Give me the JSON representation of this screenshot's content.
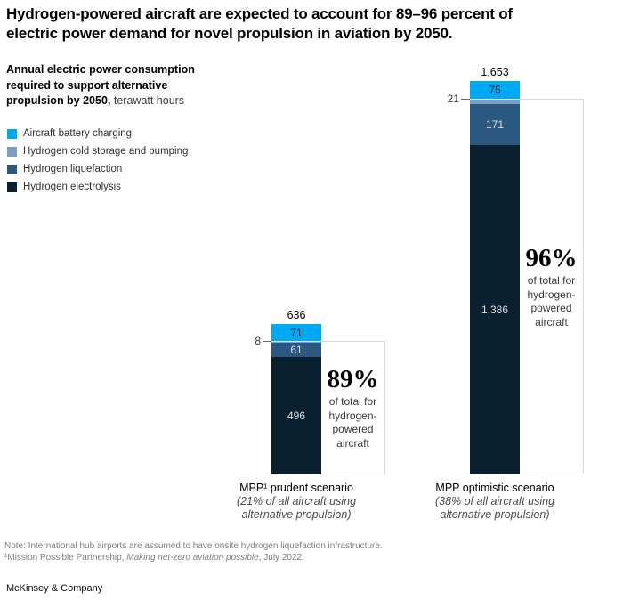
{
  "title": {
    "lines": [
      "Hydrogen-powered aircraft are expected to account for 89–96 percent of",
      "electric power demand for novel propulsion in aviation by 2050."
    ]
  },
  "subtitle": {
    "line1": "Annual electric power consumption",
    "line2": "required to support alternative",
    "line3_bold": "propulsion by 2050,",
    "unit": "terawatt hours"
  },
  "legend": [
    {
      "label": "Aircraft battery charging",
      "color": "#00a9f4"
    },
    {
      "label": "Hydrogen cold storage and pumping",
      "color": "#7d9ec3"
    },
    {
      "label": "Hydrogen liquefaction",
      "color": "#2b5880"
    },
    {
      "label": "Hydrogen electrolysis",
      "color": "#0b202f"
    }
  ],
  "chart_data": {
    "type": "bar",
    "stacked": true,
    "title": "Annual electric power consumption required to support alternative propulsion by 2050",
    "ylabel": "terawatt hours",
    "ylim": [
      0,
      1653
    ],
    "grid": false,
    "categories": [
      {
        "name": "MPP¹ prudent scenario",
        "detail_lines": [
          "(21% of all aircraft using",
          "alternative propulsion)"
        ]
      },
      {
        "name": "MPP optimistic scenario",
        "detail_lines": [
          "(38% of all aircraft using",
          "alternative propulsion)"
        ]
      }
    ],
    "series": [
      {
        "name": "Aircraft battery charging",
        "values": [
          71,
          75
        ]
      },
      {
        "name": "Hydrogen cold storage and pumping",
        "values": [
          8,
          21
        ]
      },
      {
        "name": "Hydrogen liquefaction",
        "values": [
          61,
          171
        ]
      },
      {
        "name": "Hydrogen electrolysis",
        "values": [
          496,
          1386
        ]
      }
    ],
    "totals": [
      636,
      1653
    ],
    "total_labels": [
      "636",
      "1,653"
    ],
    "segment_labels": [
      [
        "71",
        "8",
        "61",
        "496"
      ],
      [
        "75",
        "21",
        "171",
        "1,386"
      ]
    ],
    "hydrogen_share_annotations": [
      {
        "pct": "89%",
        "caption_lines": [
          "of total for",
          "hydrogen-",
          "powered",
          "aircraft"
        ]
      },
      {
        "pct": "96%",
        "caption_lines": [
          "of total for",
          "hydrogen-",
          "powered",
          "aircraft"
        ]
      }
    ]
  },
  "footnotes": {
    "note": "Note: International hub airports are assumed to have onsite hydrogen liquefaction infrastructure.",
    "source_prefix": "¹Mission Possible Partnership, ",
    "source_italic": "Making net-zero aviation possible",
    "source_suffix": ", July 2022."
  },
  "brand": "McKinsey & Company"
}
